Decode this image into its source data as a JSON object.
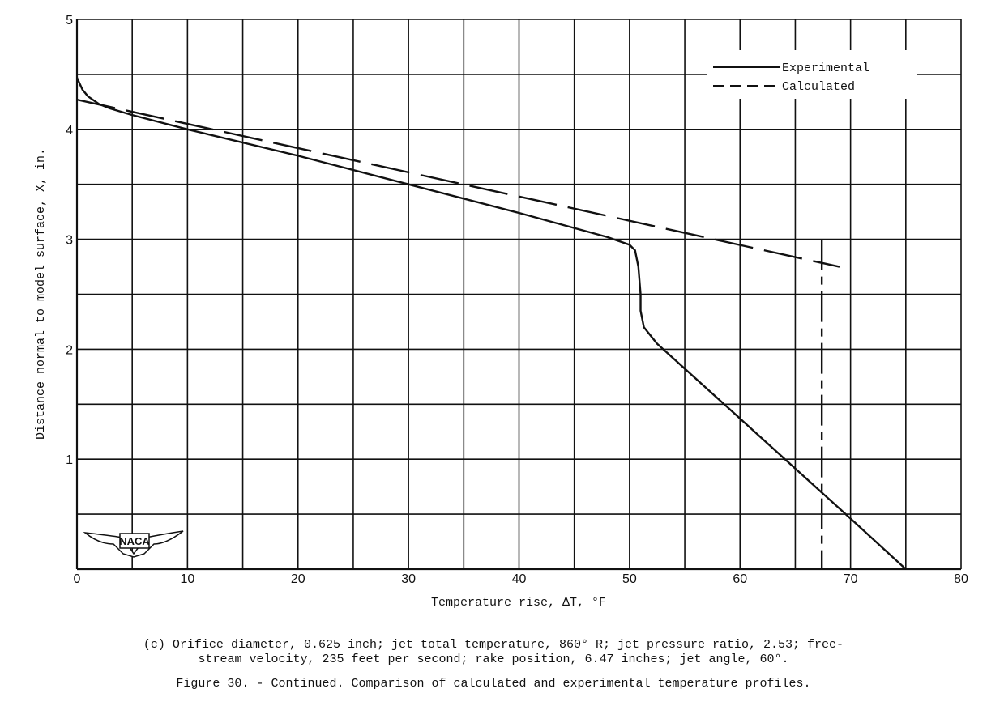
{
  "chart_data": {
    "type": "line",
    "xlabel": "Temperature rise, ΔT, °F",
    "ylabel": "Distance normal to model surface, X, in.",
    "xlim": [
      0,
      80
    ],
    "ylim": [
      0,
      5
    ],
    "x_ticks": [
      0,
      10,
      20,
      30,
      40,
      50,
      60,
      70,
      80
    ],
    "y_ticks": [
      1,
      2,
      3,
      4,
      5
    ],
    "grid": true,
    "grid_step": {
      "x": 5,
      "y": 0.5
    },
    "legend_position": "top-right",
    "series": [
      {
        "name": "Experimental",
        "style": "solid",
        "x": [
          0,
          0.5,
          1,
          2,
          3,
          5,
          10,
          20,
          30,
          40,
          48,
          50,
          50.5,
          50.8,
          51,
          51,
          51.3,
          52.5,
          60,
          70,
          75
        ],
        "y": [
          4.47,
          4.36,
          4.3,
          4.23,
          4.19,
          4.13,
          4.0,
          3.76,
          3.5,
          3.24,
          3.02,
          2.95,
          2.9,
          2.75,
          2.5,
          2.35,
          2.2,
          2.05,
          1.37,
          0.46,
          0.0
        ]
      },
      {
        "name": "Calculated",
        "style": "dashed",
        "x": [
          0,
          69
        ],
        "y": [
          4.27,
          2.75
        ]
      },
      {
        "style": "dash-dot-vertical",
        "x": [
          67.4,
          67.4
        ],
        "y": [
          3.0,
          0.0
        ]
      }
    ]
  },
  "logo": "NACA",
  "caption_sub": "(c) Orifice diameter, 0.625 inch; jet total temperature, 860° R; jet pressure ratio, 2.53; free-\nstream velocity, 235 feet per second; rake position, 6.47 inches; jet angle, 60°.",
  "caption_main": "Figure 30. - Continued.  Comparison of calculated and experimental temperature profiles."
}
